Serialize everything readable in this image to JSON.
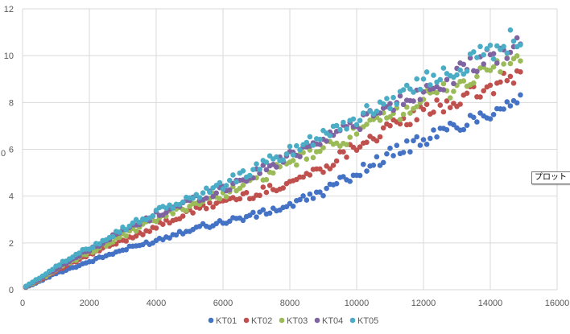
{
  "tooltip_text": "プロット エリア",
  "axis_stub": "0",
  "chart_data": {
    "type": "scatter",
    "xlim": [
      0,
      16000
    ],
    "ylim": [
      0,
      12
    ],
    "x_ticks": [
      "0",
      "2000",
      "4000",
      "6000",
      "8000",
      "10000",
      "12000",
      "14000",
      "16000"
    ],
    "y_ticks": [
      "0",
      "2",
      "4",
      "6",
      "8",
      "10",
      "12"
    ],
    "grid": true,
    "legend_position": "bottom",
    "colors": [
      "#4472C4",
      "#C0504D",
      "#9BBB59",
      "#8064A2",
      "#4BACC6"
    ],
    "x_start": 100,
    "x_step": 100,
    "x_end": 14900,
    "series": [
      {
        "name": "KT01",
        "knots": [
          [
            100,
            0.1
          ],
          [
            500,
            0.35
          ],
          [
            1000,
            0.7
          ],
          [
            2000,
            1.2
          ],
          [
            3000,
            1.7
          ],
          [
            4000,
            2.1
          ],
          [
            5000,
            2.6
          ],
          [
            6000,
            2.9
          ],
          [
            7000,
            3.2
          ],
          [
            8000,
            3.6
          ],
          [
            9000,
            4.2
          ],
          [
            10000,
            5.0
          ],
          [
            11000,
            5.8
          ],
          [
            12000,
            6.4
          ],
          [
            13000,
            7.0
          ],
          [
            14000,
            7.6
          ],
          [
            14900,
            8.3
          ]
        ]
      },
      {
        "name": "KT02",
        "knots": [
          [
            100,
            0.12
          ],
          [
            500,
            0.4
          ],
          [
            1000,
            0.8
          ],
          [
            2000,
            1.5
          ],
          [
            3000,
            2.1
          ],
          [
            4000,
            2.7
          ],
          [
            5000,
            3.3
          ],
          [
            6000,
            3.8
          ],
          [
            7000,
            4.1
          ],
          [
            8000,
            4.6
          ],
          [
            9000,
            5.2
          ],
          [
            10000,
            6.2
          ],
          [
            11000,
            6.9
          ],
          [
            12000,
            7.6
          ],
          [
            13000,
            8.1
          ],
          [
            14000,
            8.6
          ],
          [
            14900,
            9.2
          ]
        ]
      },
      {
        "name": "KT03",
        "knots": [
          [
            100,
            0.12
          ],
          [
            500,
            0.42
          ],
          [
            1000,
            0.85
          ],
          [
            2000,
            1.6
          ],
          [
            3000,
            2.3
          ],
          [
            4000,
            3.0
          ],
          [
            5000,
            3.6
          ],
          [
            6000,
            4.1
          ],
          [
            7000,
            4.7
          ],
          [
            8000,
            5.4
          ],
          [
            9000,
            6.0
          ],
          [
            10000,
            6.7
          ],
          [
            11000,
            7.4
          ],
          [
            12000,
            8.1
          ],
          [
            13000,
            8.7
          ],
          [
            14000,
            9.4
          ],
          [
            14900,
            10.0
          ]
        ]
      },
      {
        "name": "KT04",
        "knots": [
          [
            100,
            0.13
          ],
          [
            500,
            0.45
          ],
          [
            1000,
            0.9
          ],
          [
            2000,
            1.7
          ],
          [
            3000,
            2.5
          ],
          [
            4000,
            3.2
          ],
          [
            5000,
            3.8
          ],
          [
            6000,
            4.3
          ],
          [
            7000,
            5.0
          ],
          [
            8000,
            5.7
          ],
          [
            9000,
            6.5
          ],
          [
            10000,
            7.1
          ],
          [
            11000,
            7.8
          ],
          [
            12000,
            8.5
          ],
          [
            13000,
            9.2
          ],
          [
            14000,
            9.9
          ],
          [
            14900,
            10.5
          ]
        ]
      },
      {
        "name": "KT05",
        "knots": [
          [
            100,
            0.15
          ],
          [
            500,
            0.5
          ],
          [
            1000,
            1.0
          ],
          [
            2000,
            1.8
          ],
          [
            3000,
            2.6
          ],
          [
            4000,
            3.3
          ],
          [
            5000,
            3.9
          ],
          [
            6000,
            4.5
          ],
          [
            7000,
            5.2
          ],
          [
            8000,
            5.9
          ],
          [
            9000,
            6.7
          ],
          [
            10000,
            7.3
          ],
          [
            11000,
            8.1
          ],
          [
            12000,
            8.9
          ],
          [
            13000,
            9.5
          ],
          [
            14000,
            10.2
          ],
          [
            14900,
            10.9
          ]
        ]
      }
    ]
  }
}
